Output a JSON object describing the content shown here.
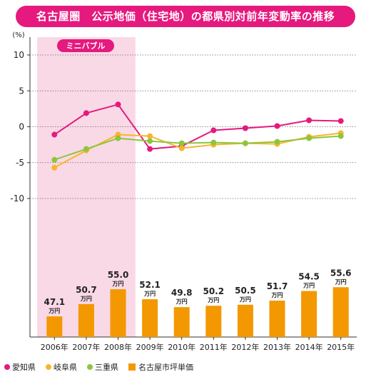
{
  "title": "名古屋圏　公示地価（住宅地）の都県別対前年変動率の推移",
  "colors": {
    "banner": "#e5197e",
    "shade": "#f9d9e6",
    "bar": "#f39800",
    "aichi": "#e5197e",
    "gifu": "#f7b52c",
    "mie": "#8cc63f"
  },
  "chart_data": {
    "type": "line",
    "categories": [
      "2006年",
      "2007年",
      "2008年",
      "2009年",
      "2010年",
      "2011年",
      "2012年",
      "2013年",
      "2014年",
      "2015年"
    ],
    "y_unit": "(%)",
    "yticks": [
      "10",
      "5",
      "0",
      "-5",
      "-10"
    ],
    "ylim": [
      -10,
      10
    ],
    "shade_label": "ミニバブル",
    "series": [
      {
        "name": "愛知県",
        "color": "#e5197e",
        "values": [
          -1.1,
          1.9,
          3.1,
          -3.1,
          -2.7,
          -0.5,
          -0.2,
          0.1,
          0.9,
          0.8
        ]
      },
      {
        "name": "岐阜県",
        "color": "#f7b52c",
        "values": [
          -5.7,
          -3.3,
          -1.1,
          -1.3,
          -3.0,
          -2.5,
          -2.3,
          -2.4,
          -1.4,
          -0.9
        ]
      },
      {
        "name": "三重県",
        "color": "#8cc63f",
        "values": [
          -4.6,
          -3.1,
          -1.6,
          -2.0,
          -2.3,
          -2.2,
          -2.3,
          -2.1,
          -1.6,
          -1.3
        ]
      }
    ],
    "bar_series": {
      "name": "名古屋市坪単価",
      "unit": "万円",
      "values": [
        47.1,
        50.7,
        55.0,
        52.1,
        49.8,
        50.2,
        50.5,
        51.7,
        54.5,
        55.6
      ],
      "labels": [
        "47.1",
        "50.7",
        "55.0",
        "52.1",
        "49.8",
        "50.2",
        "50.5",
        "51.7",
        "54.5",
        "55.6"
      ]
    }
  },
  "legend": [
    {
      "label": "愛知県",
      "kind": "dot",
      "color": "#e5197e"
    },
    {
      "label": "岐阜県",
      "kind": "dot",
      "color": "#f7b52c"
    },
    {
      "label": "三重県",
      "kind": "dot",
      "color": "#8cc63f"
    },
    {
      "label": "名古屋市坪単価",
      "kind": "square",
      "color": "#f39800"
    }
  ]
}
